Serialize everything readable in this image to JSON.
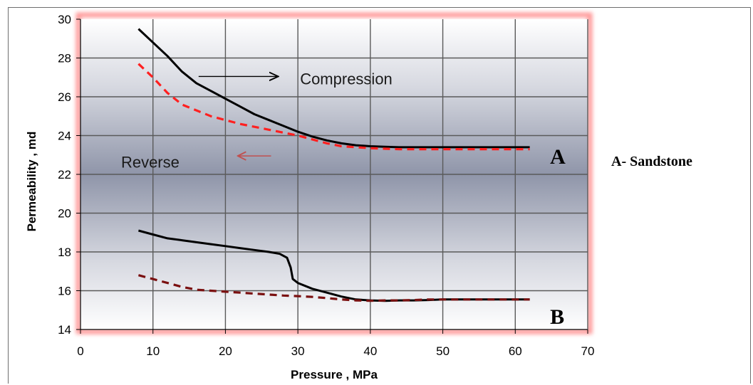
{
  "chart_data": {
    "type": "line",
    "title": "",
    "xlabel": "Pressure , MPa",
    "ylabel": "Permeability , md",
    "xlim": [
      0,
      70
    ],
    "ylim": [
      14,
      30
    ],
    "x_ticks": [
      0,
      10,
      20,
      30,
      40,
      50,
      60,
      70
    ],
    "y_ticks": [
      14,
      16,
      18,
      20,
      22,
      24,
      26,
      28,
      30
    ],
    "grid": true,
    "colors": {
      "compression": "#000000",
      "reverse_a": "#ff2020",
      "reverse_b": "#7a1010",
      "arrow_compression": "#000000",
      "arrow_reverse": "#c05050",
      "plot_glow": "#ff9a9a"
    },
    "series": [
      {
        "group": "A",
        "style": "solid",
        "color": "#000000",
        "points": [
          [
            8,
            29.5
          ],
          [
            10,
            28.8
          ],
          [
            12,
            28.1
          ],
          [
            14,
            27.3
          ],
          [
            16,
            26.7
          ],
          [
            18,
            26.3
          ],
          [
            20,
            25.9
          ],
          [
            22,
            25.5
          ],
          [
            24,
            25.1
          ],
          [
            26,
            24.8
          ],
          [
            28,
            24.5
          ],
          [
            30,
            24.2
          ],
          [
            32,
            23.95
          ],
          [
            34,
            23.75
          ],
          [
            36,
            23.6
          ],
          [
            38,
            23.5
          ],
          [
            40,
            23.45
          ],
          [
            42,
            23.42
          ],
          [
            44,
            23.4
          ],
          [
            46,
            23.4
          ],
          [
            48,
            23.4
          ],
          [
            50,
            23.4
          ],
          [
            52,
            23.4
          ],
          [
            54,
            23.4
          ],
          [
            56,
            23.4
          ],
          [
            58,
            23.4
          ],
          [
            60,
            23.4
          ],
          [
            62,
            23.4
          ]
        ]
      },
      {
        "group": "A",
        "style": "dashed",
        "color": "#ff2020",
        "points": [
          [
            8,
            27.7
          ],
          [
            10,
            27.0
          ],
          [
            12,
            26.2
          ],
          [
            14,
            25.6
          ],
          [
            16,
            25.3
          ],
          [
            18,
            25.0
          ],
          [
            20,
            24.8
          ],
          [
            22,
            24.6
          ],
          [
            24,
            24.45
          ],
          [
            26,
            24.3
          ],
          [
            28,
            24.15
          ],
          [
            30,
            24.0
          ],
          [
            32,
            23.8
          ],
          [
            34,
            23.6
          ],
          [
            36,
            23.45
          ],
          [
            38,
            23.4
          ],
          [
            40,
            23.35
          ],
          [
            42,
            23.32
          ],
          [
            44,
            23.3
          ],
          [
            46,
            23.3
          ],
          [
            48,
            23.3
          ],
          [
            50,
            23.3
          ],
          [
            52,
            23.3
          ],
          [
            54,
            23.3
          ],
          [
            56,
            23.3
          ],
          [
            58,
            23.3
          ],
          [
            60,
            23.3
          ],
          [
            62,
            23.3
          ]
        ]
      },
      {
        "group": "B",
        "style": "solid",
        "color": "#000000",
        "points": [
          [
            8,
            19.1
          ],
          [
            10,
            18.9
          ],
          [
            12,
            18.7
          ],
          [
            14,
            18.6
          ],
          [
            16,
            18.5
          ],
          [
            18,
            18.4
          ],
          [
            20,
            18.3
          ],
          [
            22,
            18.2
          ],
          [
            24,
            18.1
          ],
          [
            26,
            18.0
          ],
          [
            27.5,
            17.9
          ],
          [
            28.5,
            17.7
          ],
          [
            29,
            17.2
          ],
          [
            29.3,
            16.6
          ],
          [
            30,
            16.4
          ],
          [
            32,
            16.1
          ],
          [
            34,
            15.9
          ],
          [
            36,
            15.7
          ],
          [
            38,
            15.55
          ],
          [
            40,
            15.5
          ],
          [
            42,
            15.48
          ],
          [
            44,
            15.5
          ],
          [
            46,
            15.5
          ],
          [
            48,
            15.52
          ],
          [
            50,
            15.55
          ],
          [
            52,
            15.55
          ],
          [
            54,
            15.55
          ],
          [
            56,
            15.55
          ],
          [
            58,
            15.55
          ],
          [
            60,
            15.55
          ],
          [
            62,
            15.55
          ]
        ]
      },
      {
        "group": "B",
        "style": "dashed",
        "color": "#7a1010",
        "points": [
          [
            8,
            16.8
          ],
          [
            10,
            16.6
          ],
          [
            12,
            16.4
          ],
          [
            14,
            16.2
          ],
          [
            16,
            16.05
          ],
          [
            18,
            16.0
          ],
          [
            20,
            15.95
          ],
          [
            22,
            15.9
          ],
          [
            24,
            15.85
          ],
          [
            26,
            15.8
          ],
          [
            28,
            15.75
          ],
          [
            30,
            15.72
          ],
          [
            32,
            15.68
          ],
          [
            34,
            15.62
          ],
          [
            36,
            15.55
          ],
          [
            38,
            15.5
          ],
          [
            40,
            15.48
          ],
          [
            42,
            15.5
          ],
          [
            44,
            15.5
          ],
          [
            46,
            15.52
          ],
          [
            48,
            15.55
          ],
          [
            50,
            15.55
          ],
          [
            52,
            15.55
          ],
          [
            54,
            15.55
          ],
          [
            56,
            15.55
          ],
          [
            58,
            15.55
          ],
          [
            60,
            15.55
          ],
          [
            62,
            15.55
          ]
        ]
      }
    ],
    "annotations": {
      "compression_text": "Compression",
      "reverse_text": "Reverse",
      "label_a": "A",
      "label_b": "B",
      "legend_a": "A- Sandstone"
    }
  }
}
